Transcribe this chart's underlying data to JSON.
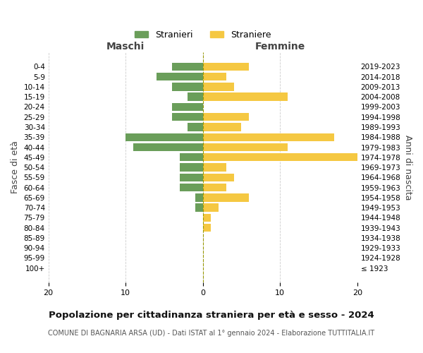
{
  "age_groups": [
    "100+",
    "95-99",
    "90-94",
    "85-89",
    "80-84",
    "75-79",
    "70-74",
    "65-69",
    "60-64",
    "55-59",
    "50-54",
    "45-49",
    "40-44",
    "35-39",
    "30-34",
    "25-29",
    "20-24",
    "15-19",
    "10-14",
    "5-9",
    "0-4"
  ],
  "birth_years": [
    "≤ 1923",
    "1924-1928",
    "1929-1933",
    "1934-1938",
    "1939-1943",
    "1944-1948",
    "1949-1953",
    "1954-1958",
    "1959-1963",
    "1964-1968",
    "1969-1973",
    "1974-1978",
    "1979-1983",
    "1984-1988",
    "1989-1993",
    "1994-1998",
    "1999-2003",
    "2004-2008",
    "2009-2013",
    "2014-2018",
    "2019-2023"
  ],
  "maschi": [
    0,
    0,
    0,
    0,
    0,
    0,
    1,
    1,
    3,
    3,
    3,
    3,
    9,
    10,
    2,
    4,
    4,
    2,
    4,
    6,
    4
  ],
  "femmine": [
    0,
    0,
    0,
    0,
    1,
    1,
    2,
    6,
    3,
    4,
    3,
    20,
    11,
    17,
    5,
    6,
    0,
    11,
    4,
    3,
    6
  ],
  "maschi_color": "#6a9e5a",
  "femmine_color": "#f5c842",
  "background_color": "#ffffff",
  "grid_color": "#cccccc",
  "title": "Popolazione per cittadinanza straniera per età e sesso - 2024",
  "subtitle": "COMUNE DI BAGNARIA ARSA (UD) - Dati ISTAT al 1° gennaio 2024 - Elaborazione TUTTITALIA.IT",
  "xlabel_left": "Maschi",
  "xlabel_right": "Femmine",
  "ylabel_left": "Fasce di età",
  "ylabel_right": "Anni di nascita",
  "legend_maschi": "Stranieri",
  "legend_femmine": "Straniere",
  "xlim": 20,
  "bar_height": 0.8
}
